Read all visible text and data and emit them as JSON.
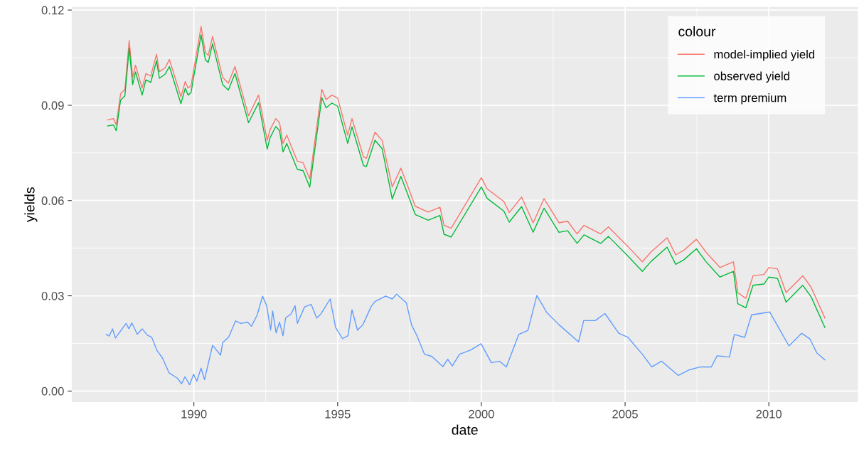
{
  "chart_data": {
    "type": "line",
    "xlabel": "date",
    "ylabel": "yields",
    "legend_title": "colour",
    "legend": "top right",
    "grid": true,
    "xlim": [
      1985.75,
      2013.1
    ],
    "ylim": [
      -0.0035,
      0.121
    ],
    "xticks": [
      1990,
      1995,
      2000,
      2005,
      2010
    ],
    "yticks": [
      {
        "value": 0,
        "label": "0.00"
      },
      {
        "value": 0.03,
        "label": "0.03"
      },
      {
        "value": 0.06,
        "label": "0.06"
      },
      {
        "value": 0.09,
        "label": "0.09"
      },
      {
        "value": 0.12,
        "label": "0.12"
      }
    ],
    "series": [
      {
        "name": "model-implied yield",
        "color": "#f8766d",
        "x": [
          1987.0,
          1987.2,
          1987.3,
          1987.45,
          1987.6,
          1987.75,
          1987.87,
          1987.97,
          1988.2,
          1988.33,
          1988.5,
          1988.7,
          1988.8,
          1989.0,
          1989.15,
          1989.55,
          1989.7,
          1989.8,
          1989.9,
          1990.25,
          1990.4,
          1990.5,
          1990.65,
          1991.0,
          1991.2,
          1991.43,
          1991.9,
          1992.25,
          1992.55,
          1992.65,
          1992.85,
          1992.98,
          1993.1,
          1993.23,
          1993.6,
          1993.8,
          1994.03,
          1994.45,
          1994.6,
          1994.8,
          1995.0,
          1995.35,
          1995.5,
          1995.9,
          1996.0,
          1996.3,
          1996.55,
          1996.9,
          1997.2,
          1997.45,
          1997.7,
          1998.15,
          1998.56,
          1998.7,
          1998.95,
          2000.0,
          2000.2,
          2000.78,
          2000.97,
          2001.4,
          2001.8,
          2002.18,
          2002.7,
          2003.0,
          2003.33,
          2003.57,
          2004.15,
          2004.42,
          2005.1,
          2005.6,
          2005.9,
          2006.46,
          2006.76,
          2007.04,
          2007.48,
          2007.81,
          2008.3,
          2008.77,
          2008.92,
          2009.2,
          2009.45,
          2009.83,
          2010.0,
          2010.3,
          2010.6,
          2011.18,
          2011.47,
          2011.95
        ],
        "values": [
          0.0854,
          0.0858,
          0.0839,
          0.0936,
          0.095,
          0.1104,
          0.0988,
          0.1026,
          0.0954,
          0.1,
          0.0992,
          0.1061,
          0.1006,
          0.1018,
          0.1044,
          0.0927,
          0.0975,
          0.0954,
          0.0962,
          0.1148,
          0.1066,
          0.1057,
          0.1117,
          0.0988,
          0.097,
          0.1022,
          0.0867,
          0.0932,
          0.0789,
          0.0823,
          0.0858,
          0.0845,
          0.078,
          0.0806,
          0.0724,
          0.0719,
          0.0668,
          0.095,
          0.0918,
          0.0932,
          0.0923,
          0.0806,
          0.0858,
          0.0737,
          0.0733,
          0.0815,
          0.0789,
          0.0643,
          0.0702,
          0.0643,
          0.0582,
          0.0564,
          0.0579,
          0.0522,
          0.0513,
          0.0672,
          0.0637,
          0.0597,
          0.0562,
          0.0611,
          0.053,
          0.0606,
          0.053,
          0.0535,
          0.0495,
          0.0522,
          0.0495,
          0.0517,
          0.0455,
          0.0407,
          0.0438,
          0.0483,
          0.0429,
          0.0443,
          0.0478,
          0.0438,
          0.0389,
          0.0407,
          0.031,
          0.0292,
          0.0363,
          0.0367,
          0.0389,
          0.0385,
          0.031,
          0.0363,
          0.0327,
          0.023
        ]
      },
      {
        "name": "observed yield",
        "color": "#00ba38",
        "x": [
          1987.0,
          1987.2,
          1987.3,
          1987.45,
          1987.6,
          1987.75,
          1987.87,
          1987.97,
          1988.2,
          1988.33,
          1988.5,
          1988.7,
          1988.8,
          1989.0,
          1989.15,
          1989.55,
          1989.7,
          1989.8,
          1989.9,
          1990.25,
          1990.4,
          1990.5,
          1990.65,
          1991.0,
          1991.2,
          1991.43,
          1991.9,
          1992.25,
          1992.55,
          1992.65,
          1992.85,
          1992.98,
          1993.1,
          1993.23,
          1993.6,
          1993.8,
          1994.03,
          1994.45,
          1994.6,
          1994.8,
          1995.0,
          1995.35,
          1995.5,
          1995.9,
          1996.0,
          1996.3,
          1996.55,
          1996.9,
          1997.2,
          1997.45,
          1997.7,
          1998.15,
          1998.56,
          1998.7,
          1998.95,
          2000.0,
          2000.2,
          2000.78,
          2000.97,
          2001.4,
          2001.8,
          2002.18,
          2002.7,
          2003.0,
          2003.33,
          2003.57,
          2004.15,
          2004.42,
          2005.1,
          2005.6,
          2005.9,
          2006.46,
          2006.76,
          2007.04,
          2007.48,
          2007.81,
          2008.3,
          2008.77,
          2008.92,
          2009.2,
          2009.45,
          2009.83,
          2010.0,
          2010.3,
          2010.6,
          2011.18,
          2011.47,
          2011.95
        ],
        "values": [
          0.0835,
          0.0838,
          0.082,
          0.0916,
          0.093,
          0.108,
          0.0965,
          0.1005,
          0.0932,
          0.098,
          0.0972,
          0.104,
          0.0985,
          0.0998,
          0.1022,
          0.0905,
          0.0954,
          0.0932,
          0.094,
          0.1122,
          0.1043,
          0.1035,
          0.1094,
          0.0965,
          0.0948,
          0.1,
          0.0845,
          0.0908,
          0.0762,
          0.0798,
          0.0833,
          0.082,
          0.0753,
          0.078,
          0.0698,
          0.0694,
          0.0642,
          0.0924,
          0.0892,
          0.0907,
          0.0897,
          0.078,
          0.0832,
          0.071,
          0.0707,
          0.079,
          0.0763,
          0.0605,
          0.0676,
          0.0617,
          0.0556,
          0.0538,
          0.0553,
          0.0494,
          0.0485,
          0.0643,
          0.0607,
          0.0567,
          0.0532,
          0.0581,
          0.05,
          0.0576,
          0.05,
          0.0505,
          0.0465,
          0.0492,
          0.0465,
          0.0487,
          0.0425,
          0.0377,
          0.0408,
          0.0453,
          0.0399,
          0.0413,
          0.0448,
          0.0408,
          0.0359,
          0.0377,
          0.0275,
          0.0262,
          0.0333,
          0.0337,
          0.0359,
          0.0355,
          0.028,
          0.0333,
          0.0297,
          0.02
        ]
      },
      {
        "name": "term premium",
        "color": "#619cff",
        "x": [
          1986.95,
          1987.05,
          1987.17,
          1987.27,
          1987.64,
          1987.74,
          1987.84,
          1988.03,
          1988.2,
          1988.38,
          1988.53,
          1988.72,
          1988.9,
          1989.14,
          1989.43,
          1989.57,
          1989.69,
          1989.85,
          1989.99,
          1990.1,
          1990.25,
          1990.37,
          1990.65,
          1990.93,
          1991.0,
          1991.21,
          1991.45,
          1991.63,
          1991.87,
          1992.0,
          1992.2,
          1992.39,
          1992.53,
          1992.67,
          1992.74,
          1992.86,
          1992.98,
          1993.1,
          1993.19,
          1993.38,
          1993.52,
          1993.6,
          1993.85,
          1994.08,
          1994.27,
          1994.42,
          1994.74,
          1994.93,
          1995.17,
          1995.36,
          1995.5,
          1995.69,
          1995.88,
          1996.16,
          1996.3,
          1996.67,
          1996.9,
          1997.05,
          1997.39,
          1997.57,
          1997.76,
          1998.02,
          1998.28,
          1998.66,
          1998.83,
          1998.99,
          1999.24,
          1999.62,
          1999.99,
          2000.35,
          2000.63,
          2000.87,
          2001.3,
          2001.62,
          2001.93,
          2002.27,
          2002.7,
          2003.38,
          2003.56,
          2003.96,
          2004.3,
          2004.78,
          2005.1,
          2005.6,
          2005.93,
          2006.27,
          2006.85,
          2007.24,
          2007.62,
          2008.0,
          2008.2,
          2008.63,
          2008.8,
          2009.16,
          2009.4,
          2009.69,
          2010.03,
          2010.37,
          2010.7,
          2011.14,
          2011.43,
          2011.67,
          2011.95
        ],
        "values": [
          0.0179,
          0.0173,
          0.0196,
          0.0167,
          0.0213,
          0.0196,
          0.0215,
          0.0179,
          0.0196,
          0.0176,
          0.017,
          0.0127,
          0.0105,
          0.0057,
          0.004,
          0.0023,
          0.0045,
          0.002,
          0.0053,
          0.0031,
          0.0072,
          0.0036,
          0.0144,
          0.0113,
          0.0152,
          0.017,
          0.0221,
          0.0213,
          0.0217,
          0.0204,
          0.0239,
          0.0299,
          0.0269,
          0.0192,
          0.0252,
          0.0183,
          0.0217,
          0.0174,
          0.023,
          0.0243,
          0.0269,
          0.0213,
          0.0265,
          0.0273,
          0.023,
          0.0243,
          0.029,
          0.02,
          0.0165,
          0.0174,
          0.0256,
          0.0192,
          0.0209,
          0.0265,
          0.0282,
          0.0299,
          0.029,
          0.0305,
          0.0278,
          0.0209,
          0.0174,
          0.0116,
          0.0109,
          0.0077,
          0.01,
          0.0079,
          0.0116,
          0.0129,
          0.0149,
          0.0089,
          0.0094,
          0.0076,
          0.0178,
          0.0191,
          0.0301,
          0.0248,
          0.0209,
          0.0155,
          0.0222,
          0.0222,
          0.0244,
          0.0182,
          0.0169,
          0.0116,
          0.0076,
          0.0094,
          0.0049,
          0.0067,
          0.0076,
          0.0076,
          0.0111,
          0.0107,
          0.0178,
          0.0169,
          0.024,
          0.0244,
          0.0249,
          0.0195,
          0.0142,
          0.0182,
          0.0164,
          0.012,
          0.0098
        ]
      }
    ]
  }
}
